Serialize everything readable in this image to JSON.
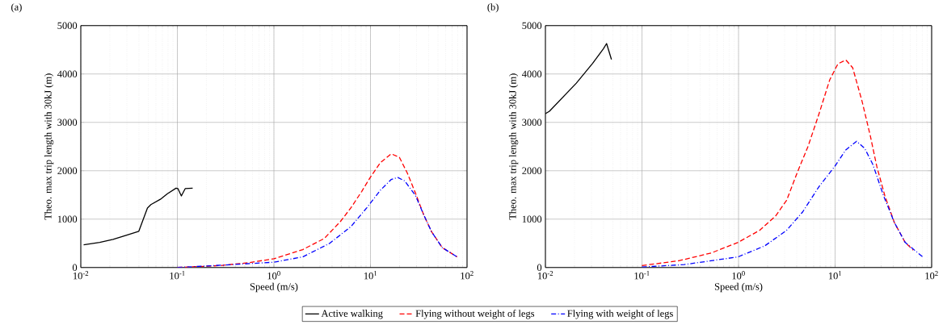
{
  "chart_data": [
    {
      "type": "line",
      "title": "(a)",
      "xlabel": "Speed (m/s)",
      "ylabel": "Theo. max trip length with 30kJ (m)",
      "log": "x",
      "grid": true,
      "legend": "bottom",
      "xlim": [
        0.01,
        100
      ],
      "ylim": [
        0,
        5000
      ],
      "xticks": [
        {
          "value": 0.01,
          "label": "10$^{-2}$"
        },
        {
          "value": 0.1,
          "label": "10$^{-1}$"
        },
        {
          "value": 1,
          "label": "10$^{0}$"
        },
        {
          "value": 10,
          "label": "10$^{1}$"
        },
        {
          "value": 100,
          "label": "10$^{2}$"
        }
      ],
      "yticks": [
        0,
        1000,
        2000,
        3000,
        4000,
        5000
      ],
      "series": [
        {
          "name": "Active walking",
          "color": "#000000",
          "line_style": "solid",
          "x": [
            0.0107,
            0.0157,
            0.0216,
            0.0299,
            0.0399,
            0.049,
            0.0532,
            0.0667,
            0.0784,
            0.0969,
            0.1014,
            0.11,
            0.1205,
            0.144
          ],
          "values": [
            470,
            520,
            580,
            670,
            750,
            1230,
            1300,
            1410,
            1520,
            1640,
            1630,
            1480,
            1630,
            1640
          ]
        },
        {
          "name": "Flying without weight of legs",
          "color": "#ff0000",
          "line_style": "dashed",
          "x": [
            0.1,
            0.279,
            0.548,
            1.0,
            1.99,
            3.32,
            4.88,
            6.3,
            8.1,
            10,
            12.7,
            16.4,
            19.9,
            24.1,
            29.2,
            35.4,
            42.9,
            55.4,
            78.9
          ],
          "values": [
            0,
            40,
            100,
            180,
            370,
            600,
            950,
            1240,
            1570,
            1870,
            2170,
            2350,
            2280,
            1950,
            1540,
            1100,
            740,
            410,
            220
          ]
        },
        {
          "name": "Flying with weight of legs",
          "color": "#0000ff",
          "line_style": "dash-dot",
          "x": [
            0.1,
            0.372,
            1.0,
            1.99,
            3.78,
            6.3,
            9.2,
            12.7,
            16.4,
            19.2,
            22.6,
            29.2,
            35.4,
            42.9,
            55.4,
            78.9
          ],
          "values": [
            0,
            60,
            110,
            220,
            500,
            850,
            1240,
            1600,
            1820,
            1860,
            1790,
            1490,
            1100,
            740,
            410,
            220
          ]
        }
      ]
    },
    {
      "type": "line",
      "title": "(b)",
      "xlabel": "Speed (m/s)",
      "ylabel": "Theo. max trip length with 30kJ (m)",
      "log": "x",
      "grid": true,
      "xlim": [
        0.01,
        100
      ],
      "ylim": [
        0,
        5000
      ],
      "xticks": [
        {
          "value": 0.01,
          "label": "10$^{-2}$"
        },
        {
          "value": 0.1,
          "label": "10$^{-1}$"
        },
        {
          "value": 1,
          "label": "10$^{0}$"
        },
        {
          "value": 10,
          "label": "10$^{1}$"
        },
        {
          "value": 100,
          "label": "10$^{2}$"
        }
      ],
      "yticks": [
        0,
        1000,
        2000,
        3000,
        4000,
        5000
      ],
      "series": [
        {
          "color": "#000000",
          "line_style": "solid",
          "x": [
            0.01,
            0.011,
            0.0209,
            0.0308,
            0.0398,
            0.043,
            0.0483
          ],
          "values": [
            3180,
            3230,
            3810,
            4220,
            4520,
            4630,
            4300
          ]
        },
        {
          "color": "#ff0000",
          "line_style": "dashed",
          "x": [
            0.1,
            0.241,
            0.521,
            0.99,
            1.66,
            2.43,
            3.15,
            4.07,
            5.26,
            6.8,
            8.8,
            10.7,
            12.9,
            15.2,
            19,
            23.1,
            27.1,
            32.8,
            41.1,
            53.1,
            64.4
          ],
          "values": [
            40,
            140,
            300,
            520,
            770,
            1070,
            1390,
            1970,
            2510,
            3170,
            3880,
            4210,
            4290,
            4130,
            3440,
            2730,
            2080,
            1480,
            930,
            520,
            360
          ]
        },
        {
          "color": "#0000ff",
          "line_style": "dash-dot",
          "x": [
            0.1,
            0.274,
            0.99,
            1.88,
            3.15,
            4.62,
            6.8,
            10,
            12.9,
            16.7,
            20.3,
            24.6,
            31.8,
            41.1,
            53.1,
            80.7
          ],
          "values": [
            10,
            60,
            220,
            450,
            770,
            1150,
            1670,
            2100,
            2430,
            2610,
            2460,
            2130,
            1480,
            930,
            520,
            220
          ]
        }
      ]
    }
  ]
}
